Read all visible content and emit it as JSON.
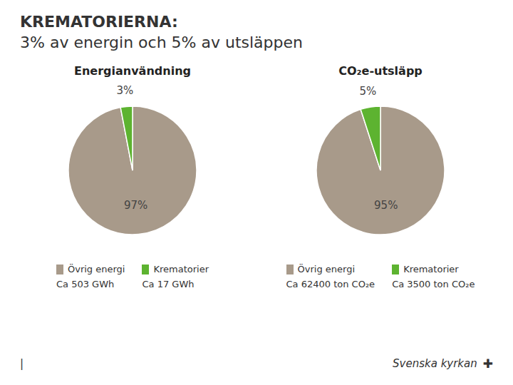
{
  "title": "KREMATORIERNA:",
  "subtitle": "3% av energin och 5% av utsläppen",
  "chart_data": [
    {
      "type": "pie",
      "title": "Energianvändning",
      "categories": [
        "Övrig energi",
        "Krematorier"
      ],
      "values": [
        97,
        3
      ],
      "value_labels": [
        "97%",
        "3%"
      ],
      "colors": [
        "#A89A8A",
        "#5DB330"
      ],
      "data_labels": true,
      "legend": "bottom",
      "annotations": [
        "Ca 503 GWh",
        "Ca 17 GWh"
      ]
    },
    {
      "type": "pie",
      "title": "CO₂e-utsläpp",
      "categories": [
        "Övrig energi",
        "Krematorier"
      ],
      "values": [
        95,
        5
      ],
      "value_labels": [
        "95%",
        "5%"
      ],
      "colors": [
        "#A89A8A",
        "#5DB330"
      ],
      "data_labels": true,
      "legend": "bottom",
      "annotations": [
        "Ca 62400 ton CO₂e",
        "Ca 3500 ton CO₂e"
      ]
    }
  ],
  "annotations": [
    "|",
    "Svenska kyrkan",
    "✚"
  ]
}
